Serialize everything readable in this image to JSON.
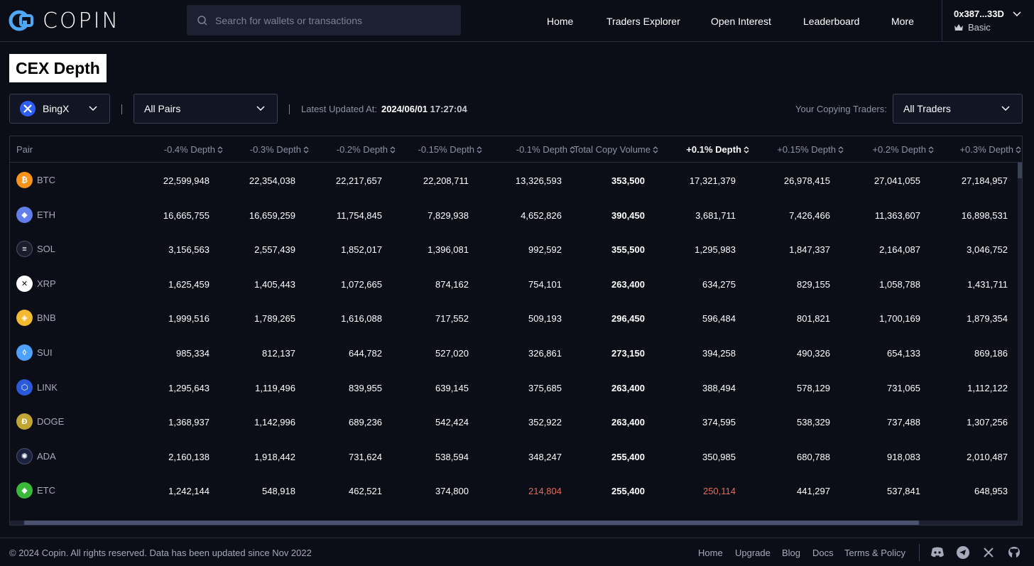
{
  "header": {
    "logo_text": "COPIN",
    "search_placeholder": "Search for wallets or transactions",
    "nav": [
      "Home",
      "Traders Explorer",
      "Open Interest",
      "Leaderboard",
      "More"
    ],
    "account_address": "0x387...33D",
    "account_plan": "Basic"
  },
  "page_title": "CEX Depth",
  "filters": {
    "exchange": "BingX",
    "pairs": "All Pairs",
    "updated_label": "Latest Updated At:",
    "updated_date": "2024/06/01",
    "updated_time": "17:27:04",
    "copying_label": "Your Copying Traders:",
    "traders": "All Traders"
  },
  "table": {
    "columns": [
      "Pair",
      "-0.4% Depth",
      "-0.3% Depth",
      "-0.2% Depth",
      "-0.15% Depth",
      "-0.1% Depth",
      "Total Copy Volume",
      "+0.1% Depth",
      "+0.15% Depth",
      "+0.2% Depth",
      "+0.3% Depth"
    ],
    "rows": [
      {
        "pair": "BTC",
        "icon_color": "#f7931a",
        "icon": "btc-icon",
        "values": [
          "22,599,948",
          "22,354,038",
          "22,217,657",
          "22,208,711",
          "13,326,593",
          "353,500",
          "17,321,379",
          "26,978,415",
          "27,041,055",
          "27,184,957"
        ],
        "red": []
      },
      {
        "pair": "ETH",
        "icon_color": "#627eea",
        "icon": "eth-icon",
        "values": [
          "16,665,755",
          "16,659,259",
          "11,754,845",
          "7,829,938",
          "4,652,826",
          "390,450",
          "3,681,711",
          "7,426,466",
          "11,363,607",
          "16,898,531"
        ],
        "red": []
      },
      {
        "pair": "SOL",
        "icon_color": "#1b1d2a",
        "icon": "sol-icon",
        "values": [
          "3,156,563",
          "2,557,439",
          "1,852,017",
          "1,396,081",
          "992,592",
          "355,500",
          "1,295,983",
          "1,847,337",
          "2,164,087",
          "3,046,752"
        ],
        "red": []
      },
      {
        "pair": "XRP",
        "icon_color": "#ffffff",
        "icon": "xrp-icon",
        "values": [
          "1,625,459",
          "1,405,443",
          "1,072,665",
          "874,162",
          "754,101",
          "263,400",
          "634,275",
          "829,155",
          "1,058,788",
          "1,431,711"
        ],
        "red": []
      },
      {
        "pair": "BNB",
        "icon_color": "#f3ba2f",
        "icon": "bnb-icon",
        "values": [
          "1,999,516",
          "1,789,265",
          "1,616,088",
          "717,552",
          "509,193",
          "296,450",
          "596,484",
          "801,821",
          "1,700,169",
          "1,879,354"
        ],
        "red": []
      },
      {
        "pair": "SUI",
        "icon_color": "#4da2ff",
        "icon": "sui-icon",
        "values": [
          "985,334",
          "812,137",
          "644,782",
          "527,020",
          "326,861",
          "273,150",
          "394,258",
          "490,326",
          "654,133",
          "869,186"
        ],
        "red": []
      },
      {
        "pair": "LINK",
        "icon_color": "#2a5ada",
        "icon": "link-icon",
        "values": [
          "1,295,643",
          "1,119,496",
          "839,955",
          "639,145",
          "375,685",
          "263,400",
          "388,494",
          "578,129",
          "731,065",
          "1,112,122"
        ],
        "red": []
      },
      {
        "pair": "DOGE",
        "icon_color": "#c2a633",
        "icon": "doge-icon",
        "values": [
          "1,368,937",
          "1,142,996",
          "689,236",
          "542,424",
          "352,922",
          "263,400",
          "374,595",
          "538,329",
          "737,488",
          "1,307,256"
        ],
        "red": []
      },
      {
        "pair": "ADA",
        "icon_color": "#1a2240",
        "icon": "ada-icon",
        "values": [
          "2,160,138",
          "1,918,442",
          "731,624",
          "538,594",
          "348,247",
          "255,400",
          "350,985",
          "680,788",
          "918,083",
          "2,010,487"
        ],
        "red": []
      },
      {
        "pair": "ETC",
        "icon_color": "#3ab83a",
        "icon": "etc-icon",
        "values": [
          "1,242,144",
          "548,918",
          "462,521",
          "374,800",
          "214,804",
          "255,400",
          "250,114",
          "441,297",
          "537,841",
          "648,953"
        ],
        "red": [
          4,
          6
        ]
      }
    ]
  },
  "footer": {
    "copyright": "© 2024 Copin. All rights reserved. Data has been updated since Nov 2022",
    "links": [
      "Home",
      "Upgrade",
      "Blog",
      "Docs",
      "Terms & Policy"
    ],
    "social_icons": [
      "discord-icon",
      "telegram-icon",
      "x-icon",
      "github-icon"
    ]
  }
}
